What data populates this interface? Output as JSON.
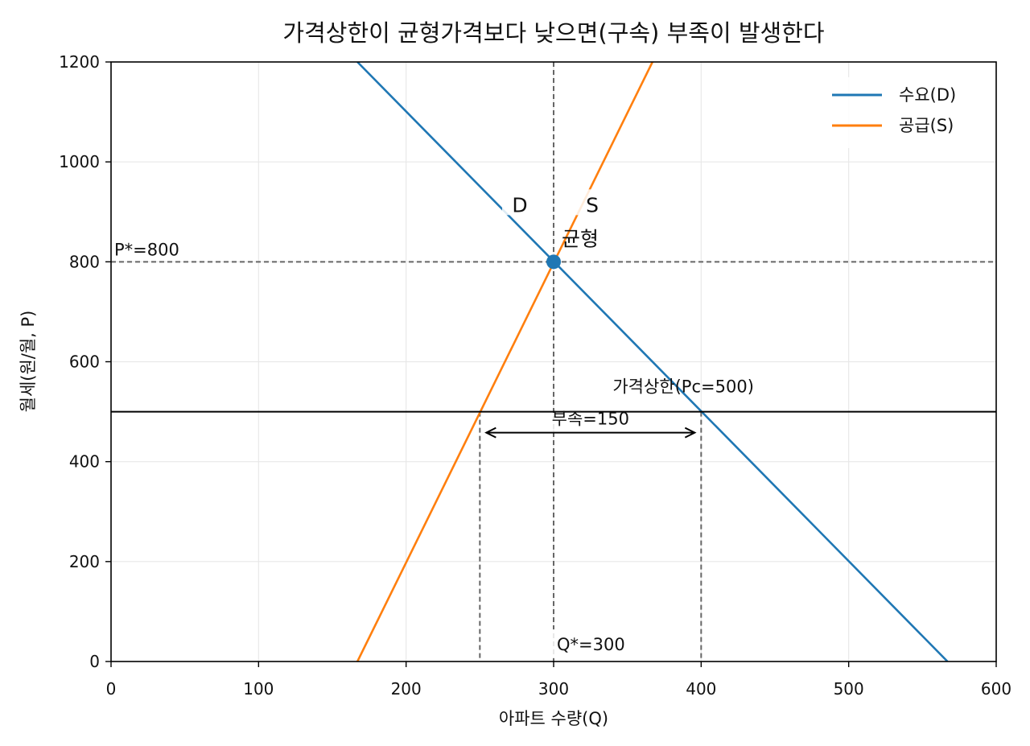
{
  "chart_data": {
    "type": "line",
    "title": "가격상한이 균형가격보다 낮으면(구속) 부족이 발생한다",
    "xlabel": "아파트 수량(Q)",
    "ylabel": "월세(원/월, P)",
    "xlim": [
      0,
      600
    ],
    "ylim": [
      0,
      1200
    ],
    "xticks": [
      0,
      100,
      200,
      300,
      400,
      500,
      600
    ],
    "yticks": [
      0,
      200,
      400,
      600,
      800,
      1000,
      1200
    ],
    "xtick_labels": [
      "0",
      "100",
      "200",
      "300",
      "400",
      "500",
      "600"
    ],
    "ytick_labels": [
      "0",
      "200",
      "400",
      "600",
      "800",
      "1000",
      "1200"
    ],
    "grid": true,
    "legend_position": "top-right",
    "series": [
      {
        "name": "수요(D)",
        "color": "#1f77b4",
        "x": [
          167,
          567
        ],
        "y": [
          1200,
          0
        ]
      },
      {
        "name": "공급(S)",
        "color": "#ff7f0e",
        "x": [
          167,
          367
        ],
        "y": [
          0,
          1200
        ]
      }
    ],
    "equilibrium": {
      "q": 300,
      "p": 800,
      "color": "#1f77b4"
    },
    "price_ceiling": {
      "p": 500,
      "qs": 250,
      "qd": 400
    },
    "annotations": {
      "equilibrium": "균형",
      "p_star": "P*=800",
      "q_star": "Q*=300",
      "ceiling": "가격상한(Pc=500)",
      "shortage": "부족=150",
      "demand_label": "D",
      "supply_label": "S"
    }
  }
}
